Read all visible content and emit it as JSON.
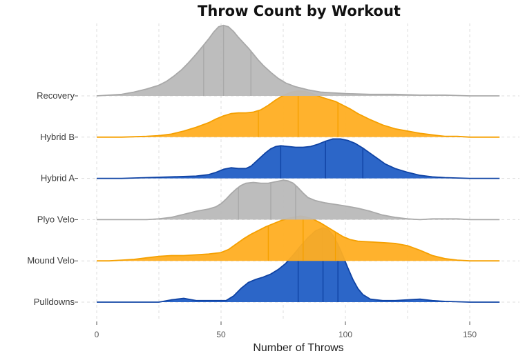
{
  "chart_data": {
    "type": "ridgeline",
    "title": "Throw Count by Workout",
    "xlabel": "Number of Throws",
    "ylabel": "",
    "xlim": [
      -5,
      167
    ],
    "x_ticks": [
      0,
      50,
      100,
      150
    ],
    "grid": true,
    "colors": {
      "gray": "#b9b9b9",
      "gray_line": "#a9a9a9",
      "orange": "#ffae22",
      "orange_line": "#f5a000",
      "blue": "#2561c6",
      "blue_line": "#0f43a4"
    },
    "series": [
      {
        "name": "Pulldowns",
        "color": "blue",
        "height": 1.0,
        "points": [
          [
            0,
            0.0
          ],
          [
            20,
            0.0
          ],
          [
            25,
            0.0
          ],
          [
            30,
            0.03
          ],
          [
            35,
            0.05
          ],
          [
            40,
            0.02
          ],
          [
            45,
            0.02
          ],
          [
            50,
            0.02
          ],
          [
            52,
            0.02
          ],
          [
            55,
            0.08
          ],
          [
            58,
            0.18
          ],
          [
            61,
            0.26
          ],
          [
            64,
            0.3
          ],
          [
            67,
            0.33
          ],
          [
            70,
            0.37
          ],
          [
            73,
            0.43
          ],
          [
            76,
            0.51
          ],
          [
            79,
            0.62
          ],
          [
            82,
            0.74
          ],
          [
            85,
            0.85
          ],
          [
            88,
            0.94
          ],
          [
            91,
            0.98
          ],
          [
            93,
            0.96
          ],
          [
            95,
            0.88
          ],
          [
            97,
            0.76
          ],
          [
            99,
            0.61
          ],
          [
            101,
            0.45
          ],
          [
            103,
            0.3
          ],
          [
            105,
            0.18
          ],
          [
            107,
            0.1
          ],
          [
            110,
            0.04
          ],
          [
            115,
            0.02
          ],
          [
            120,
            0.02
          ],
          [
            125,
            0.03
          ],
          [
            130,
            0.04
          ],
          [
            135,
            0.02
          ],
          [
            140,
            0.01
          ],
          [
            150,
            0.0
          ],
          [
            162,
            0.0
          ]
        ],
        "quantiles": [
          81,
          91,
          97
        ]
      },
      {
        "name": "Mound Velo",
        "color": "orange",
        "height": 1.0,
        "points": [
          [
            0,
            0.0
          ],
          [
            5,
            0.0
          ],
          [
            10,
            0.01
          ],
          [
            15,
            0.02
          ],
          [
            20,
            0.04
          ],
          [
            25,
            0.06
          ],
          [
            30,
            0.07
          ],
          [
            35,
            0.07
          ],
          [
            40,
            0.08
          ],
          [
            45,
            0.09
          ],
          [
            50,
            0.11
          ],
          [
            53,
            0.15
          ],
          [
            56,
            0.22
          ],
          [
            59,
            0.29
          ],
          [
            62,
            0.35
          ],
          [
            65,
            0.4
          ],
          [
            68,
            0.45
          ],
          [
            71,
            0.49
          ],
          [
            74,
            0.53
          ],
          [
            77,
            0.56
          ],
          [
            80,
            0.58
          ],
          [
            82,
            0.59
          ],
          [
            84,
            0.58
          ],
          [
            87,
            0.55
          ],
          [
            90,
            0.5
          ],
          [
            93,
            0.44
          ],
          [
            96,
            0.38
          ],
          [
            99,
            0.32
          ],
          [
            102,
            0.28
          ],
          [
            105,
            0.26
          ],
          [
            110,
            0.25
          ],
          [
            115,
            0.24
          ],
          [
            120,
            0.23
          ],
          [
            125,
            0.2
          ],
          [
            130,
            0.14
          ],
          [
            135,
            0.07
          ],
          [
            140,
            0.03
          ],
          [
            145,
            0.01
          ],
          [
            150,
            0.0
          ],
          [
            162,
            0.0
          ]
        ],
        "quantiles": [
          69,
          83,
          96
        ]
      },
      {
        "name": "Plyo Velo",
        "color": "gray",
        "height": 1.0,
        "points": [
          [
            0,
            0.0
          ],
          [
            20,
            0.0
          ],
          [
            25,
            0.01
          ],
          [
            30,
            0.03
          ],
          [
            35,
            0.07
          ],
          [
            40,
            0.11
          ],
          [
            45,
            0.14
          ],
          [
            48,
            0.17
          ],
          [
            50,
            0.21
          ],
          [
            52,
            0.27
          ],
          [
            54,
            0.34
          ],
          [
            56,
            0.4
          ],
          [
            58,
            0.45
          ],
          [
            60,
            0.48
          ],
          [
            63,
            0.49
          ],
          [
            66,
            0.48
          ],
          [
            69,
            0.48
          ],
          [
            72,
            0.5
          ],
          [
            75,
            0.52
          ],
          [
            77,
            0.51
          ],
          [
            79,
            0.48
          ],
          [
            81,
            0.42
          ],
          [
            83,
            0.35
          ],
          [
            85,
            0.29
          ],
          [
            88,
            0.25
          ],
          [
            92,
            0.22
          ],
          [
            96,
            0.2
          ],
          [
            100,
            0.18
          ],
          [
            105,
            0.15
          ],
          [
            110,
            0.11
          ],
          [
            115,
            0.06
          ],
          [
            120,
            0.03
          ],
          [
            125,
            0.01
          ],
          [
            130,
            0.0
          ],
          [
            135,
            0.01
          ],
          [
            140,
            0.01
          ],
          [
            145,
            0.01
          ],
          [
            150,
            0.0
          ],
          [
            162,
            0.0
          ]
        ],
        "quantiles": [
          57,
          70,
          80
        ]
      },
      {
        "name": "Hybrid A",
        "color": "blue",
        "height": 1.0,
        "points": [
          [
            0,
            0.0
          ],
          [
            10,
            0.0
          ],
          [
            20,
            0.01
          ],
          [
            30,
            0.02
          ],
          [
            40,
            0.03
          ],
          [
            45,
            0.05
          ],
          [
            48,
            0.08
          ],
          [
            51,
            0.12
          ],
          [
            54,
            0.14
          ],
          [
            57,
            0.13
          ],
          [
            60,
            0.13
          ],
          [
            62,
            0.16
          ],
          [
            64,
            0.22
          ],
          [
            66,
            0.28
          ],
          [
            68,
            0.34
          ],
          [
            70,
            0.39
          ],
          [
            72,
            0.42
          ],
          [
            74,
            0.43
          ],
          [
            77,
            0.42
          ],
          [
            80,
            0.41
          ],
          [
            83,
            0.41
          ],
          [
            86,
            0.42
          ],
          [
            89,
            0.45
          ],
          [
            92,
            0.49
          ],
          [
            95,
            0.52
          ],
          [
            98,
            0.52
          ],
          [
            101,
            0.5
          ],
          [
            104,
            0.46
          ],
          [
            107,
            0.4
          ],
          [
            110,
            0.33
          ],
          [
            113,
            0.26
          ],
          [
            116,
            0.19
          ],
          [
            120,
            0.13
          ],
          [
            125,
            0.08
          ],
          [
            130,
            0.04
          ],
          [
            135,
            0.02
          ],
          [
            140,
            0.01
          ],
          [
            150,
            0.0
          ],
          [
            162,
            0.0
          ]
        ],
        "quantiles": [
          74,
          92,
          107
        ]
      },
      {
        "name": "Hybrid B",
        "color": "orange",
        "height": 1.0,
        "points": [
          [
            0,
            0.0
          ],
          [
            10,
            0.0
          ],
          [
            20,
            0.01
          ],
          [
            25,
            0.02
          ],
          [
            30,
            0.04
          ],
          [
            35,
            0.08
          ],
          [
            40,
            0.13
          ],
          [
            45,
            0.19
          ],
          [
            48,
            0.24
          ],
          [
            51,
            0.28
          ],
          [
            54,
            0.31
          ],
          [
            57,
            0.32
          ],
          [
            60,
            0.32
          ],
          [
            63,
            0.33
          ],
          [
            66,
            0.36
          ],
          [
            69,
            0.42
          ],
          [
            72,
            0.49
          ],
          [
            75,
            0.55
          ],
          [
            78,
            0.59
          ],
          [
            81,
            0.61
          ],
          [
            84,
            0.6
          ],
          [
            87,
            0.57
          ],
          [
            90,
            0.53
          ],
          [
            93,
            0.5
          ],
          [
            96,
            0.47
          ],
          [
            99,
            0.42
          ],
          [
            102,
            0.37
          ],
          [
            105,
            0.31
          ],
          [
            110,
            0.23
          ],
          [
            115,
            0.16
          ],
          [
            120,
            0.11
          ],
          [
            125,
            0.08
          ],
          [
            130,
            0.05
          ],
          [
            135,
            0.03
          ],
          [
            140,
            0.01
          ],
          [
            145,
            0.01
          ],
          [
            150,
            0.0
          ],
          [
            162,
            0.0
          ]
        ],
        "quantiles": [
          65,
          81,
          97
        ]
      },
      {
        "name": "Recovery",
        "color": "gray",
        "height": 1.0,
        "points": [
          [
            0,
            0.0
          ],
          [
            5,
            0.01
          ],
          [
            10,
            0.02
          ],
          [
            15,
            0.05
          ],
          [
            20,
            0.09
          ],
          [
            25,
            0.14
          ],
          [
            28,
            0.19
          ],
          [
            31,
            0.26
          ],
          [
            34,
            0.34
          ],
          [
            37,
            0.44
          ],
          [
            40,
            0.55
          ],
          [
            43,
            0.67
          ],
          [
            45,
            0.75
          ],
          [
            47,
            0.84
          ],
          [
            49,
            0.91
          ],
          [
            51,
            0.93
          ],
          [
            53,
            0.91
          ],
          [
            55,
            0.85
          ],
          [
            57,
            0.77
          ],
          [
            59,
            0.7
          ],
          [
            61,
            0.63
          ],
          [
            63,
            0.55
          ],
          [
            65,
            0.47
          ],
          [
            67,
            0.4
          ],
          [
            70,
            0.31
          ],
          [
            73,
            0.23
          ],
          [
            76,
            0.17
          ],
          [
            80,
            0.12
          ],
          [
            85,
            0.08
          ],
          [
            90,
            0.05
          ],
          [
            95,
            0.04
          ],
          [
            100,
            0.03
          ],
          [
            110,
            0.02
          ],
          [
            120,
            0.02
          ],
          [
            130,
            0.01
          ],
          [
            140,
            0.01
          ],
          [
            150,
            0.0
          ],
          [
            162,
            0.0
          ]
        ],
        "quantiles": [
          43,
          51,
          62
        ]
      }
    ]
  }
}
